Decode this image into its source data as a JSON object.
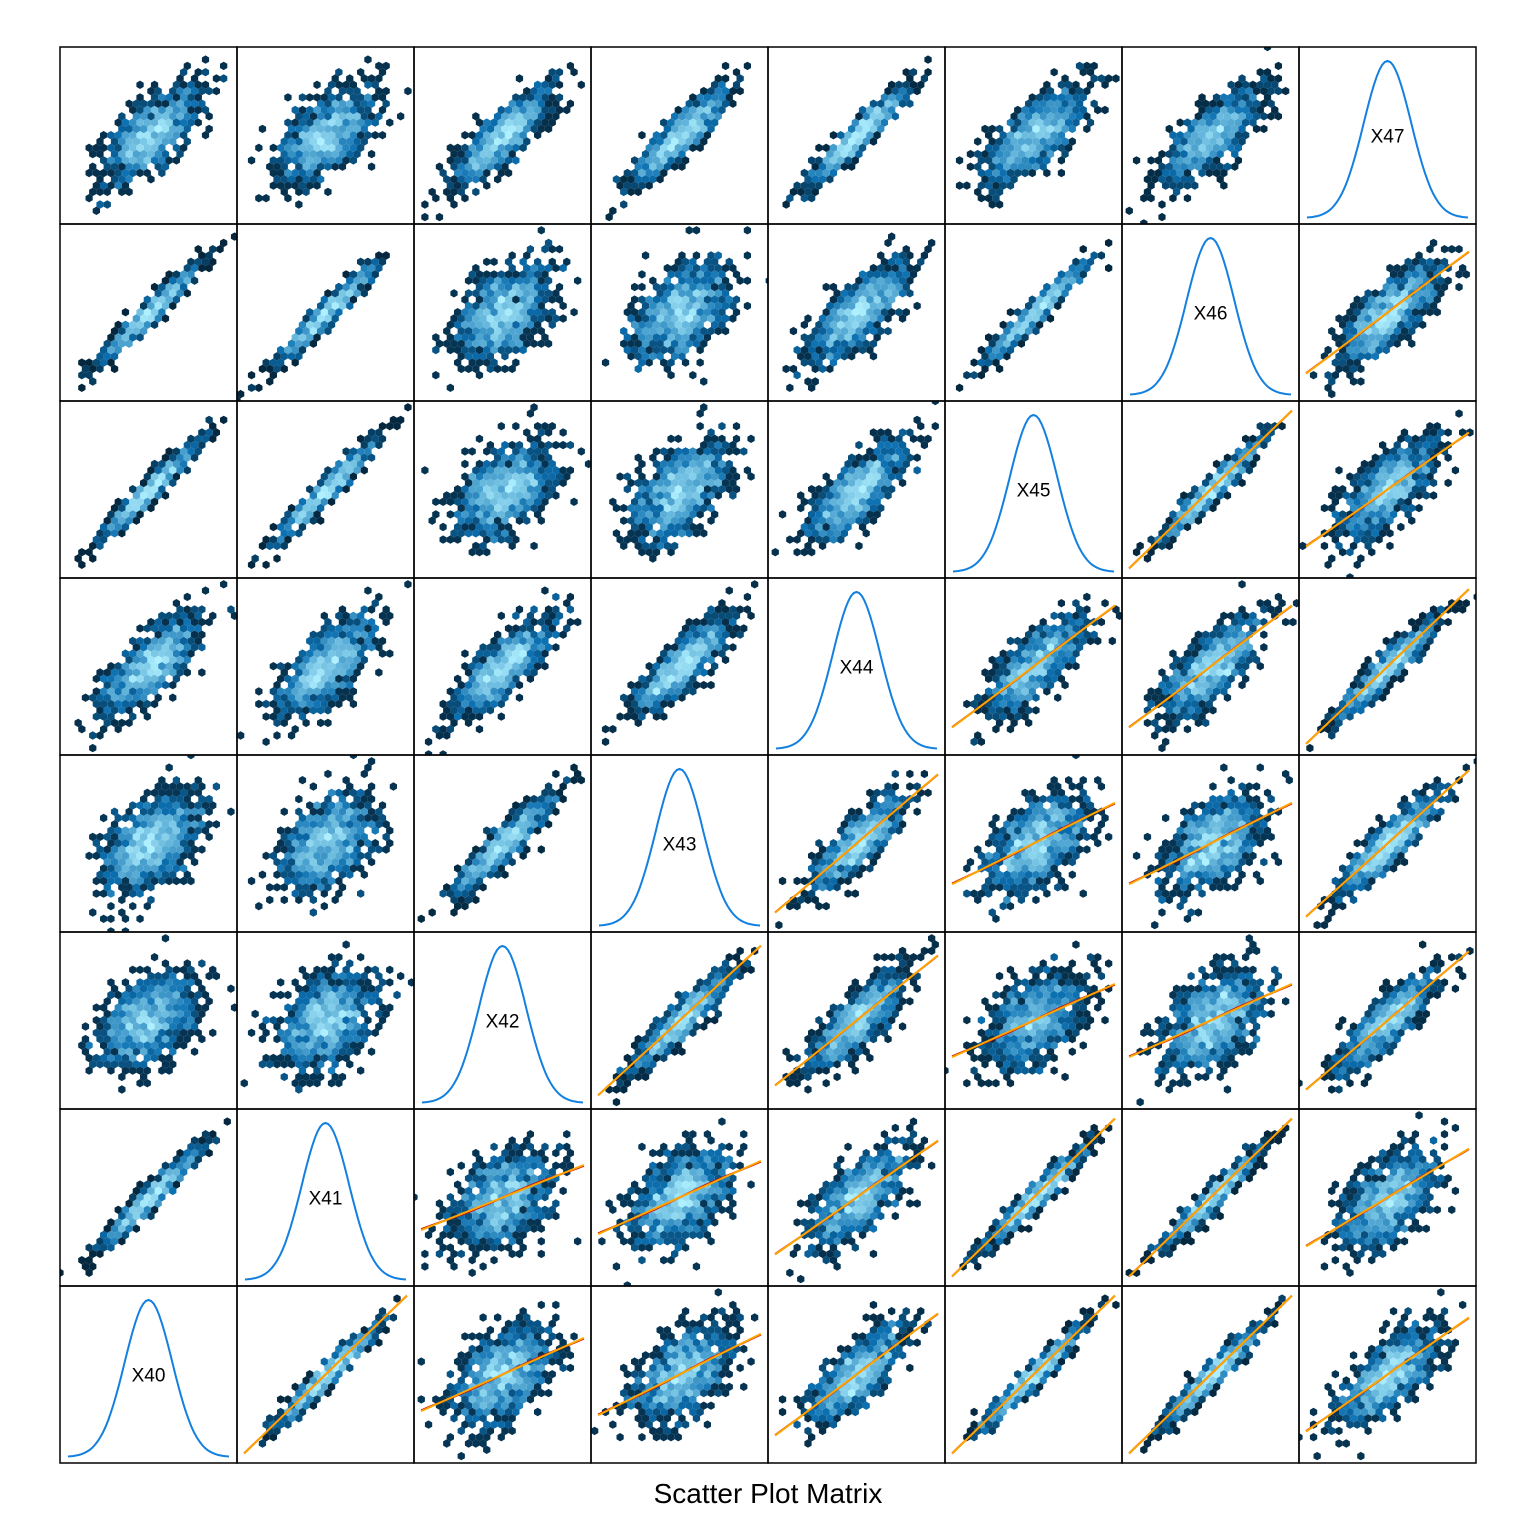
{
  "chart_data": {
    "type": "scatter",
    "title": "Scatter Plot Matrix",
    "variables": [
      "X40",
      "X41",
      "X42",
      "X43",
      "X44",
      "X45",
      "X46",
      "X47"
    ],
    "layout": "lower-left diagonal: density curves with variable names; off-diagonal: hexbin density scatter; lower triangle adds linear (orange) and smooth (red) fit lines",
    "correlation_matrix": [
      [
        1.0,
        0.97,
        0.45,
        0.5,
        0.75,
        0.97,
        0.97,
        0.7
      ],
      [
        0.97,
        1.0,
        0.4,
        0.45,
        0.7,
        0.97,
        0.97,
        0.6
      ],
      [
        0.45,
        0.4,
        1.0,
        0.92,
        0.8,
        0.45,
        0.45,
        0.85
      ],
      [
        0.5,
        0.45,
        0.92,
        1.0,
        0.85,
        0.5,
        0.5,
        0.9
      ],
      [
        0.75,
        0.7,
        0.8,
        0.85,
        1.0,
        0.75,
        0.75,
        0.95
      ],
      [
        0.97,
        0.97,
        0.45,
        0.5,
        0.75,
        1.0,
        0.97,
        0.7
      ],
      [
        0.97,
        0.97,
        0.45,
        0.5,
        0.75,
        0.97,
        1.0,
        0.75
      ],
      [
        0.7,
        0.6,
        0.85,
        0.9,
        0.95,
        0.7,
        0.75,
        1.0
      ]
    ],
    "colors": {
      "hexbin_low": "#000000",
      "hexbin_mid": "#0b6fb0",
      "hexbin_high": "#aef0ff",
      "density_line": "#1380e0",
      "linear_fit": "#ffa500",
      "smooth_fit": "#cc0000",
      "panel_border": "#000000"
    },
    "grid": false,
    "legend": "none"
  }
}
